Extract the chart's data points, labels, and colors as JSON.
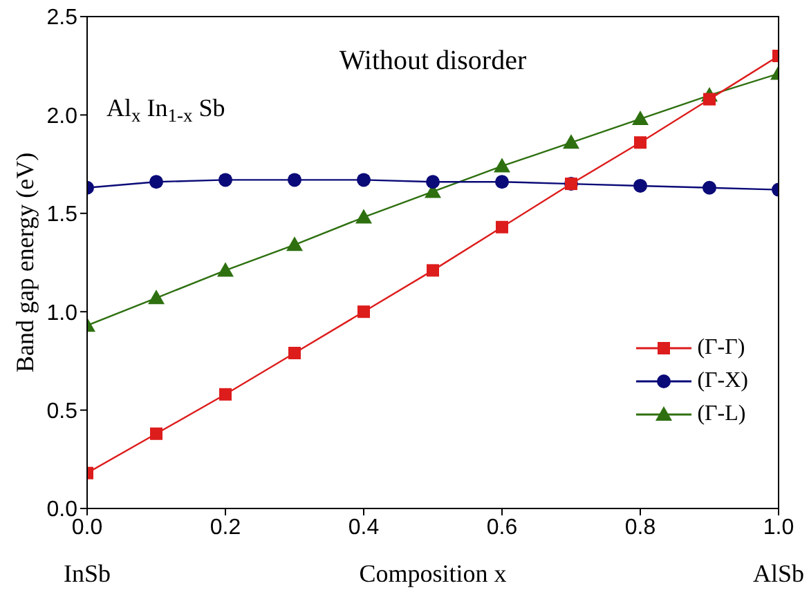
{
  "chart_data": {
    "type": "line",
    "title": "Without disorder",
    "xlabel": "Composition x",
    "ylabel": "Band gap energy (eV)",
    "annotations": [
      "Al$_{x}$In$_{1-x}$Sb",
      "InSb",
      "AlSb"
    ],
    "x": [
      0,
      0.1,
      0.2,
      0.3,
      0.4,
      0.5,
      0.6,
      0.7,
      0.8,
      0.9,
      1.0
    ],
    "series": [
      {
        "name": "(Γ-Γ)",
        "color": "#dd1c1c",
        "marker": "square",
        "values": [
          0.18,
          0.38,
          0.58,
          0.79,
          1.0,
          1.21,
          1.43,
          1.65,
          1.86,
          2.08,
          2.3
        ]
      },
      {
        "name": "(Γ-X)",
        "color": "#0a0a78",
        "marker": "circle",
        "values": [
          1.63,
          1.66,
          1.67,
          1.67,
          1.67,
          1.66,
          1.66,
          1.65,
          1.64,
          1.63,
          1.62
        ]
      },
      {
        "name": "(Γ-L)",
        "color": "#2e7010",
        "marker": "triangle",
        "values": [
          0.93,
          1.07,
          1.21,
          1.34,
          1.48,
          1.61,
          1.74,
          1.86,
          1.98,
          2.1,
          2.21
        ]
      }
    ],
    "xlim": [
      0,
      1
    ],
    "xticks": [
      {
        "value": 0,
        "label": "0.0"
      },
      {
        "value": 0.2,
        "label": "0.2"
      },
      {
        "value": 0.4,
        "label": "0.4"
      },
      {
        "value": 0.6,
        "label": "0.6"
      },
      {
        "value": 0.8,
        "label": "0.8"
      },
      {
        "value": 1,
        "label": "1.0"
      }
    ],
    "ylim": [
      0,
      2.5
    ],
    "yticks": [
      {
        "value": 0,
        "label": "0.0"
      },
      {
        "value": 0.5,
        "label": "0.5"
      },
      {
        "value": 1,
        "label": "1.0"
      },
      {
        "value": 1.5,
        "label": "1.5"
      },
      {
        "value": 2,
        "label": "2.0"
      },
      {
        "value": 2.5,
        "label": "2.5"
      }
    ],
    "grid": false,
    "legend": "bottom right"
  }
}
